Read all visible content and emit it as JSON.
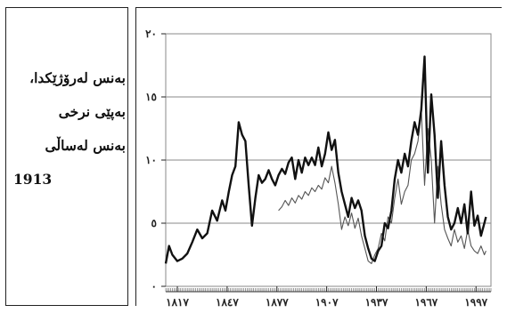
{
  "ylabel_lines": [
    "بەنس لەرۆژێکدا،",
    "بەپێی نرخی",
    "بەنس لەساڵی",
    "1913"
  ],
  "chart_data": {
    "type": "line",
    "title": "",
    "xlabel": "",
    "ylabel": "بەنس لەرۆژێکدا، بەپێی نرخی بەنس لەساڵی 1913",
    "xlim": [
      1810,
      2006
    ],
    "ylim": [
      0,
      20
    ],
    "x_ticks": [
      1817,
      1847,
      1877,
      1907,
      1937,
      1967,
      1997
    ],
    "x_tick_labels": [
      "١٨١٧",
      "١٨٤٧",
      "١٨٧٧",
      "١٩٠٧",
      "١٩٣٧",
      "١٩٦٧",
      "١٩٩٧"
    ],
    "y_ticks": [
      0,
      5,
      10,
      15,
      20
    ],
    "y_tick_labels": [
      "٠",
      "٥",
      "١٠",
      "١٥",
      "٢٠"
    ],
    "grid": true,
    "colors": {
      "thick": "#111111",
      "thin": "#555555",
      "grid": "#888888"
    },
    "series": [
      {
        "name": "",
        "style": "thick",
        "x": [
          1810,
          1812,
          1814,
          1817,
          1820,
          1823,
          1826,
          1829,
          1832,
          1835,
          1838,
          1841,
          1844,
          1846,
          1848,
          1850,
          1852,
          1854,
          1856,
          1858,
          1860,
          1862,
          1864,
          1866,
          1868,
          1870,
          1872,
          1874,
          1876,
          1878,
          1880,
          1882,
          1884,
          1886,
          1888,
          1890,
          1892,
          1894,
          1896,
          1898,
          1900,
          1902,
          1904,
          1906,
          1908,
          1910,
          1912,
          1914,
          1916,
          1918,
          1920,
          1922,
          1924,
          1926,
          1928,
          1930,
          1932,
          1934,
          1936,
          1938,
          1940,
          1942,
          1944,
          1946,
          1948,
          1950,
          1952,
          1954,
          1956,
          1958,
          1960,
          1962,
          1964,
          1966,
          1968,
          1970,
          1972,
          1974,
          1976,
          1978,
          1980,
          1982,
          1984,
          1986,
          1988,
          1990,
          1992,
          1994,
          1996,
          1998,
          2000,
          2002,
          2003
        ],
        "values": [
          1.8,
          3.2,
          2.5,
          2.0,
          2.2,
          2.6,
          3.5,
          4.5,
          3.8,
          4.2,
          6.0,
          5.2,
          6.8,
          6.0,
          7.5,
          8.8,
          9.5,
          13.0,
          12.0,
          11.5,
          8.0,
          4.8,
          7.0,
          8.8,
          8.2,
          8.5,
          9.2,
          8.5,
          8.0,
          8.8,
          9.3,
          8.9,
          9.8,
          10.2,
          8.5,
          10.0,
          9.0,
          10.2,
          9.6,
          10.2,
          9.6,
          11.0,
          9.5,
          10.5,
          12.2,
          10.8,
          11.6,
          9.0,
          7.5,
          6.5,
          5.5,
          7.0,
          6.2,
          6.8,
          6.0,
          4.0,
          3.0,
          2.2,
          2.0,
          2.8,
          3.2,
          5.0,
          4.6,
          6.0,
          8.5,
          10.0,
          9.0,
          10.5,
          9.5,
          11.5,
          13.0,
          12.0,
          14.0,
          18.2,
          9.0,
          15.2,
          12.0,
          7.0,
          11.5,
          8.0,
          5.5,
          4.5,
          5.0,
          6.2,
          5.0,
          6.5,
          4.2,
          7.5,
          4.8,
          5.6,
          4.0,
          5.0,
          5.5
        ]
      },
      {
        "name": "",
        "style": "thin",
        "x": [
          1878,
          1880,
          1882,
          1884,
          1886,
          1888,
          1890,
          1892,
          1894,
          1896,
          1898,
          1900,
          1902,
          1904,
          1906,
          1908,
          1910,
          1912,
          1914,
          1916,
          1918,
          1920,
          1922,
          1924,
          1926,
          1928,
          1930,
          1932,
          1934,
          1936,
          1938,
          1940,
          1942,
          1944,
          1946,
          1948,
          1950,
          1952,
          1954,
          1956,
          1958,
          1960,
          1962,
          1964,
          1966,
          1968,
          1970,
          1972,
          1974,
          1976,
          1978,
          1980,
          1982,
          1984,
          1986,
          1988,
          1990,
          1992,
          1994,
          1996,
          1998,
          2000,
          2002,
          2003
        ],
        "values": [
          6.0,
          6.3,
          6.8,
          6.4,
          7.0,
          6.6,
          7.2,
          6.9,
          7.5,
          7.2,
          7.8,
          7.5,
          8.0,
          7.7,
          8.6,
          8.2,
          9.5,
          8.2,
          6.5,
          4.5,
          5.5,
          4.8,
          5.8,
          4.6,
          5.4,
          4.0,
          3.0,
          2.0,
          1.8,
          2.5,
          3.0,
          4.2,
          3.6,
          5.5,
          5.0,
          7.0,
          8.5,
          6.5,
          7.5,
          8.0,
          10.0,
          10.5,
          11.5,
          14.0,
          8.0,
          12.5,
          10.0,
          5.0,
          9.5,
          6.5,
          4.5,
          3.8,
          3.2,
          4.5,
          3.5,
          4.0,
          3.0,
          4.5,
          3.2,
          2.8,
          2.6,
          3.2,
          2.5,
          2.8
        ]
      }
    ]
  }
}
